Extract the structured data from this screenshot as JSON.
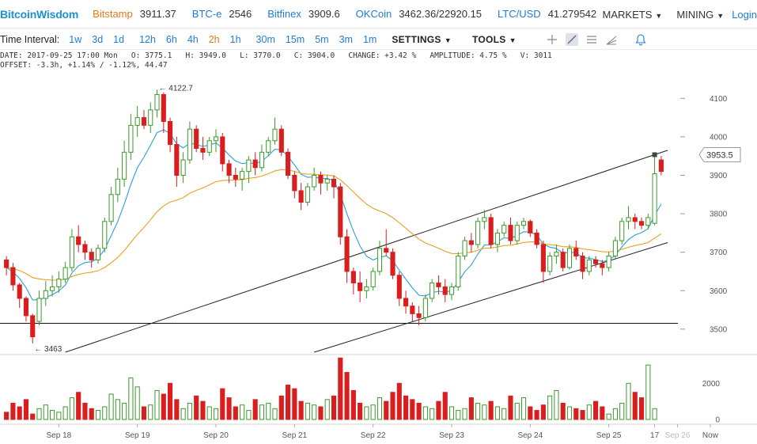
{
  "header": {
    "logo": "BitcoinWisdom",
    "tickers": [
      {
        "exchange": "Bitstamp",
        "price": "3911.37",
        "color": "#e07b1a"
      },
      {
        "exchange": "BTC-e",
        "price": "2546",
        "color": "#1e7bd6"
      },
      {
        "exchange": "Bitfinex",
        "price": "3909.6",
        "color": "#1e7bd6"
      },
      {
        "exchange": "OKCoin",
        "price": "3462.36/22920.15",
        "color": "#1e7bd6"
      },
      {
        "exchange": "LTC/USD",
        "price": "41.279542",
        "color": "#1e7bd6"
      }
    ],
    "menu": {
      "markets": "MARKETS",
      "mining": "MINING",
      "login": "Login"
    }
  },
  "toolbar": {
    "interval_label": "Time Interval:",
    "intervals": [
      "1w",
      "3d",
      "1d",
      "12h",
      "6h",
      "4h",
      "2h",
      "1h",
      "30m",
      "15m",
      "5m",
      "3m",
      "1m"
    ],
    "active_interval": "2h",
    "settings": "SETTINGS",
    "tools": "TOOLS",
    "tool_icons": [
      "crosshair-icon",
      "line-draw-icon",
      "horizontal-lines-icon",
      "fan-lines-icon",
      "alert-bell-icon"
    ]
  },
  "info": {
    "line1": "DATE: 2017-09-25 17:00 Mon   O: 3775.1   H: 3949.0   L: 3770.0   C: 3904.0   CHANGE: +3.42 %   AMPLITUDE: 4.75 %   V: 3011",
    "line2": "OFFSET: -3.3h, +1.14% / -1.12%, 44.47"
  },
  "chart_data": {
    "type": "candlestick",
    "x_labels": [
      "Sep 18",
      "Sep 19",
      "Sep 20",
      "Sep 21",
      "Sep 22",
      "Sep 23",
      "Sep 24",
      "Sep 25",
      "17",
      "Sep 26",
      "Now"
    ],
    "price_ticks": [
      3500,
      3600,
      3700,
      3800,
      3900,
      4000,
      4100
    ],
    "volume_ticks": [
      0,
      2000
    ],
    "ylim": [
      3440,
      4150
    ],
    "current_price_label": "3953.5",
    "annotations": {
      "high": "← 4122.7",
      "low": "← 3463"
    },
    "horizontal_line": 3515,
    "colors": {
      "up": "#3a9a2a",
      "down": "#d81e1e",
      "ema_fast": "#2aa0d8",
      "ema_slow": "#e6a21c"
    },
    "ohlc": [
      [
        3680,
        3690,
        3640,
        3660
      ],
      [
        3660,
        3672,
        3600,
        3615
      ],
      [
        3615,
        3620,
        3555,
        3580
      ],
      [
        3580,
        3585,
        3520,
        3535
      ],
      [
        3535,
        3540,
        3463,
        3480
      ],
      [
        3520,
        3600,
        3510,
        3580
      ],
      [
        3580,
        3625,
        3560,
        3600
      ],
      [
        3600,
        3640,
        3585,
        3610
      ],
      [
        3610,
        3650,
        3595,
        3630
      ],
      [
        3630,
        3675,
        3620,
        3660
      ],
      [
        3660,
        3760,
        3650,
        3740
      ],
      [
        3740,
        3770,
        3700,
        3720
      ],
      [
        3720,
        3730,
        3680,
        3700
      ],
      [
        3700,
        3710,
        3660,
        3680
      ],
      [
        3680,
        3720,
        3670,
        3710
      ],
      [
        3710,
        3790,
        3700,
        3780
      ],
      [
        3780,
        3870,
        3770,
        3850
      ],
      [
        3850,
        3920,
        3830,
        3890
      ],
      [
        3890,
        3990,
        3870,
        3960
      ],
      [
        3960,
        4060,
        3940,
        4030
      ],
      [
        4030,
        4080,
        4000,
        4050
      ],
      [
        4050,
        4070,
        4020,
        4030
      ],
      [
        4030,
        4090,
        4010,
        4070
      ],
      [
        4070,
        4122.7,
        4050,
        4110
      ],
      [
        4110,
        4115,
        4010,
        4040
      ],
      [
        4040,
        4050,
        3960,
        3980
      ],
      [
        3980,
        4000,
        3870,
        3900
      ],
      [
        3900,
        3960,
        3880,
        3940
      ],
      [
        3940,
        4040,
        3930,
        4020
      ],
      [
        4020,
        4030,
        3960,
        3970
      ],
      [
        3970,
        4000,
        3940,
        3960
      ],
      [
        3960,
        4000,
        3950,
        3990
      ],
      [
        3990,
        4020,
        3960,
        4000
      ],
      [
        4000,
        4010,
        3910,
        3930
      ],
      [
        3930,
        3940,
        3880,
        3900
      ],
      [
        3900,
        3920,
        3870,
        3890
      ],
      [
        3890,
        3920,
        3860,
        3910
      ],
      [
        3910,
        3950,
        3880,
        3940
      ],
      [
        3940,
        3960,
        3900,
        3920
      ],
      [
        3920,
        3980,
        3910,
        3960
      ],
      [
        3960,
        4000,
        3950,
        3990
      ],
      [
        3990,
        4050,
        3980,
        4020
      ],
      [
        4020,
        4030,
        3950,
        3960
      ],
      [
        3960,
        3970,
        3890,
        3900
      ],
      [
        3900,
        3910,
        3840,
        3860
      ],
      [
        3860,
        3880,
        3810,
        3830
      ],
      [
        3830,
        3880,
        3820,
        3870
      ],
      [
        3870,
        3920,
        3860,
        3900
      ],
      [
        3900,
        3910,
        3850,
        3880
      ],
      [
        3880,
        3900,
        3860,
        3890
      ],
      [
        3890,
        3900,
        3840,
        3870
      ],
      [
        3870,
        3880,
        3720,
        3740
      ],
      [
        3740,
        3760,
        3620,
        3650
      ],
      [
        3650,
        3660,
        3590,
        3620
      ],
      [
        3620,
        3650,
        3570,
        3600
      ],
      [
        3600,
        3630,
        3580,
        3610
      ],
      [
        3610,
        3660,
        3600,
        3650
      ],
      [
        3650,
        3730,
        3640,
        3710
      ],
      [
        3710,
        3760,
        3690,
        3700
      ],
      [
        3700,
        3710,
        3630,
        3640
      ],
      [
        3640,
        3650,
        3560,
        3580
      ],
      [
        3580,
        3600,
        3540,
        3560
      ],
      [
        3560,
        3570,
        3520,
        3540
      ],
      [
        3540,
        3560,
        3510,
        3530
      ],
      [
        3530,
        3590,
        3520,
        3580
      ],
      [
        3580,
        3630,
        3570,
        3620
      ],
      [
        3620,
        3640,
        3590,
        3610
      ],
      [
        3610,
        3630,
        3570,
        3590
      ],
      [
        3590,
        3620,
        3575,
        3610
      ],
      [
        3610,
        3700,
        3600,
        3690
      ],
      [
        3690,
        3740,
        3680,
        3730
      ],
      [
        3730,
        3750,
        3700,
        3720
      ],
      [
        3720,
        3790,
        3710,
        3780
      ],
      [
        3780,
        3810,
        3760,
        3790
      ],
      [
        3790,
        3800,
        3710,
        3720
      ],
      [
        3720,
        3760,
        3700,
        3750
      ],
      [
        3750,
        3780,
        3740,
        3770
      ],
      [
        3770,
        3790,
        3720,
        3730
      ],
      [
        3730,
        3780,
        3720,
        3770
      ],
      [
        3770,
        3790,
        3760,
        3780
      ],
      [
        3780,
        3785,
        3740,
        3750
      ],
      [
        3750,
        3760,
        3710,
        3720
      ],
      [
        3720,
        3730,
        3620,
        3650
      ],
      [
        3650,
        3700,
        3640,
        3690
      ],
      [
        3690,
        3720,
        3670,
        3700
      ],
      [
        3700,
        3710,
        3650,
        3660
      ],
      [
        3660,
        3720,
        3655,
        3710
      ],
      [
        3710,
        3730,
        3680,
        3690
      ],
      [
        3690,
        3700,
        3630,
        3650
      ],
      [
        3650,
        3690,
        3640,
        3680
      ],
      [
        3680,
        3690,
        3660,
        3670
      ],
      [
        3670,
        3680,
        3640,
        3660
      ],
      [
        3660,
        3700,
        3650,
        3690
      ],
      [
        3690,
        3740,
        3680,
        3730
      ],
      [
        3730,
        3790,
        3720,
        3780
      ],
      [
        3780,
        3820,
        3760,
        3790
      ],
      [
        3790,
        3800,
        3760,
        3780
      ],
      [
        3780,
        3790,
        3760,
        3770
      ],
      [
        3770,
        3800,
        3760,
        3790
      ],
      [
        3775.1,
        3949,
        3770,
        3904
      ],
      [
        3940,
        3950,
        3900,
        3910
      ]
    ],
    "volumes": [
      400,
      900,
      700,
      1100,
      300,
      600,
      800,
      500,
      400,
      700,
      1200,
      1500,
      900,
      600,
      500,
      700,
      1400,
      1100,
      900,
      2300,
      1800,
      700,
      800,
      1600,
      1400,
      2000,
      1100,
      600,
      900,
      1300,
      1000,
      700,
      600,
      1700,
      1200,
      700,
      800,
      500,
      1100,
      800,
      900,
      600,
      1300,
      1900,
      1700,
      1000,
      900,
      800,
      700,
      1100,
      1300,
      3400,
      2600,
      1600,
      900,
      700,
      800,
      1200,
      1000,
      1500,
      2000,
      1300,
      1100,
      900,
      700,
      600,
      1000,
      1500,
      700,
      500,
      600,
      1200,
      900,
      800,
      1000,
      700,
      600,
      1300,
      900,
      1200,
      700,
      500,
      800,
      1300,
      1600,
      900,
      700,
      600,
      500,
      800,
      1000,
      700,
      300,
      600,
      900,
      2000,
      1500,
      1200,
      3011,
      600
    ]
  }
}
